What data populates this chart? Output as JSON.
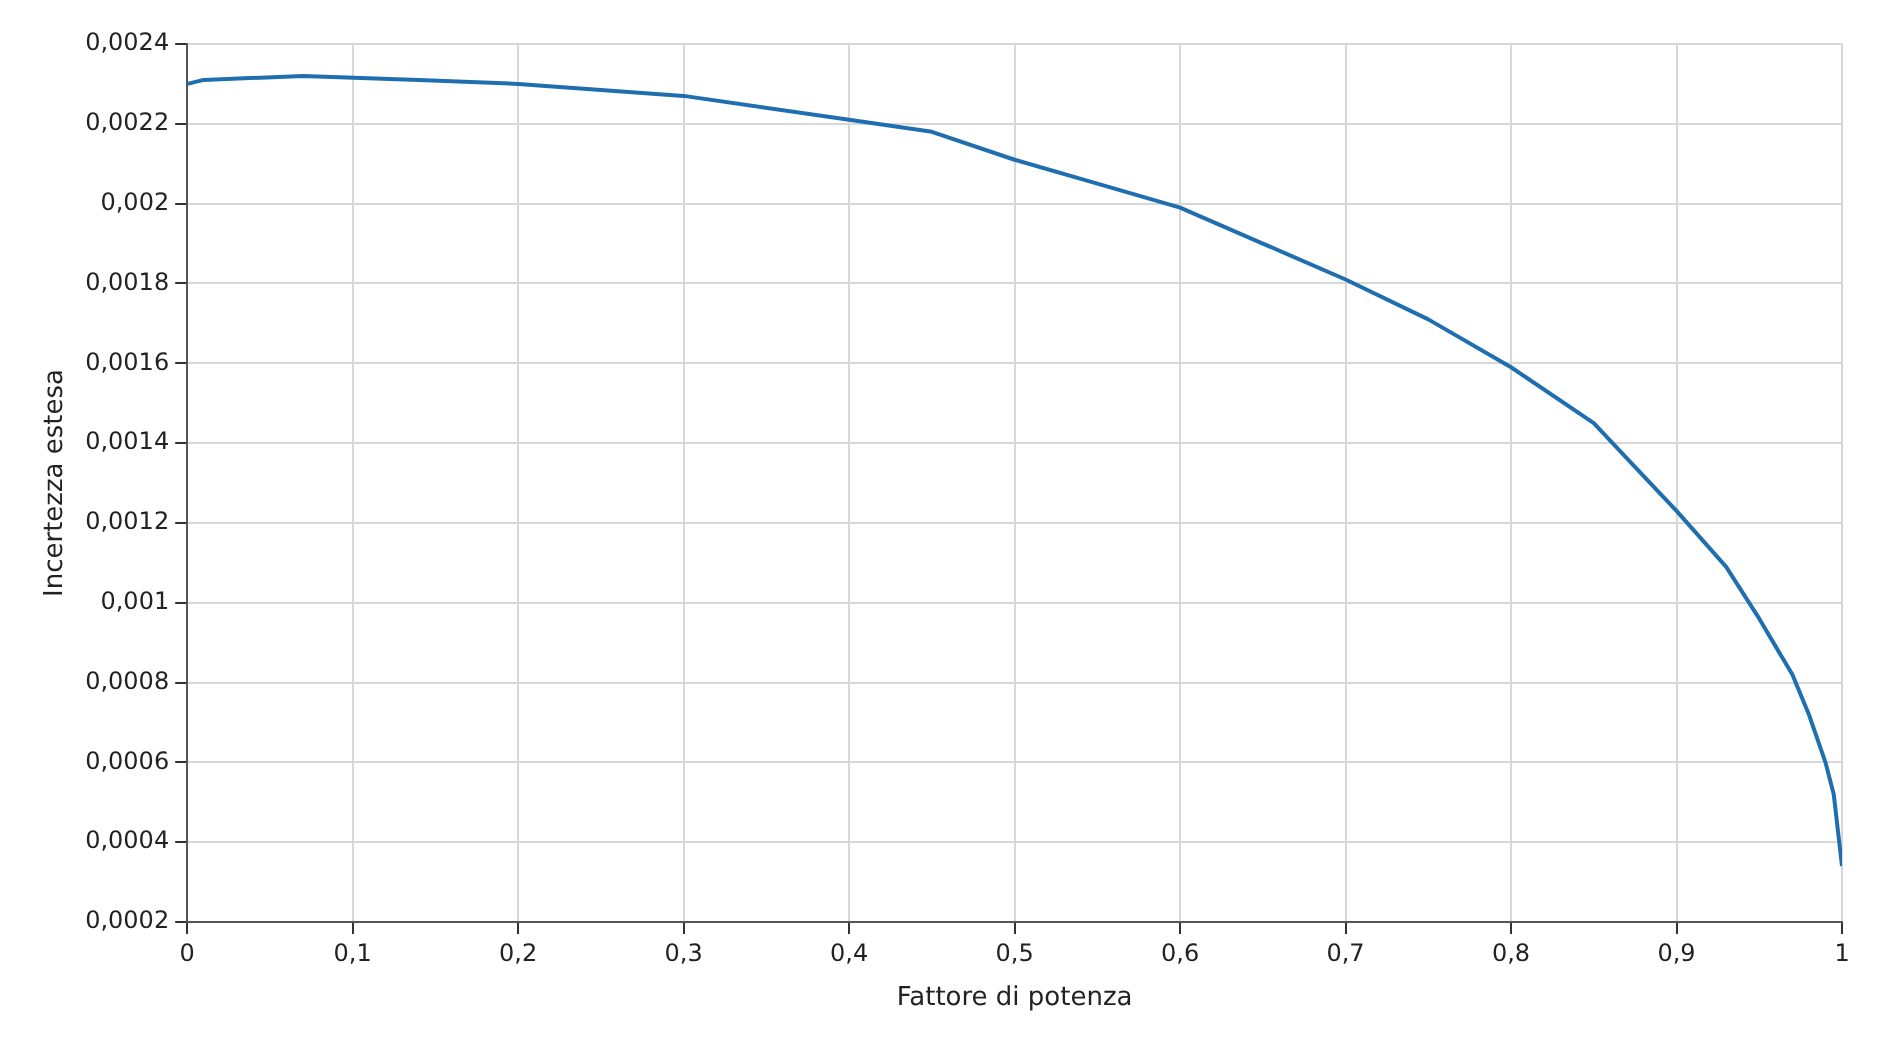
{
  "chart_data": {
    "type": "line",
    "xlabel": "Fattore di potenza",
    "ylabel": "Incertezza estesa",
    "grid": true,
    "legend": false,
    "marker": "none",
    "line_style": "solid",
    "xlim": [
      0,
      1
    ],
    "ylim": [
      0.0002,
      0.0024
    ],
    "xticks": [
      0,
      {
        "value": 0.1,
        "label": "0,1"
      },
      {
        "value": 0.2,
        "label": "0,2"
      },
      {
        "value": 0.3,
        "label": "0,3"
      },
      {
        "value": 0.4,
        "label": "0,4"
      },
      {
        "value": 0.5,
        "label": "0,5"
      },
      {
        "value": 0.6,
        "label": "0,6"
      },
      {
        "value": 0.7,
        "label": "0,7"
      },
      {
        "value": 0.8,
        "label": "0,8"
      },
      {
        "value": 0.9,
        "label": "0,9"
      },
      1
    ],
    "yticks": [
      {
        "value": 0.0002,
        "label": "0,0002"
      },
      {
        "value": 0.0004,
        "label": "0,0004"
      },
      {
        "value": 0.0006,
        "label": "0,0006"
      },
      {
        "value": 0.0008,
        "label": "0,0008"
      },
      {
        "value": 0.001,
        "label": "0,001"
      },
      {
        "value": 0.0012,
        "label": "0,0012"
      },
      {
        "value": 0.0014,
        "label": "0,0014"
      },
      {
        "value": 0.0016,
        "label": "0,0016"
      },
      {
        "value": 0.0018,
        "label": "0,0018"
      },
      {
        "value": 0.002,
        "label": "0,002"
      },
      {
        "value": 0.0022,
        "label": "0,0022"
      },
      {
        "value": 0.0024,
        "label": "0,0024"
      }
    ],
    "x": [
      0,
      0.01,
      0.07,
      0.14,
      0.2,
      0.3,
      0.4,
      0.45,
      0.5,
      0.55,
      0.6,
      0.65,
      0.7,
      0.75,
      0.8,
      0.85,
      0.875,
      0.9,
      0.93,
      0.95,
      0.97,
      0.98,
      0.99,
      0.995,
      1
    ],
    "series": [
      {
        "color": "#1f6fb0",
        "values": [
          0.0023,
          0.00231,
          0.00232,
          0.00231,
          0.0023,
          0.00227,
          0.00221,
          0.00218,
          0.00211,
          0.00205,
          0.00199,
          0.0019,
          0.00181,
          0.00171,
          0.00159,
          0.00145,
          0.00134,
          0.00123,
          0.00109,
          0.00096,
          0.00082,
          0.00072,
          0.0006,
          0.00052,
          0.00034
        ]
      }
    ]
  }
}
